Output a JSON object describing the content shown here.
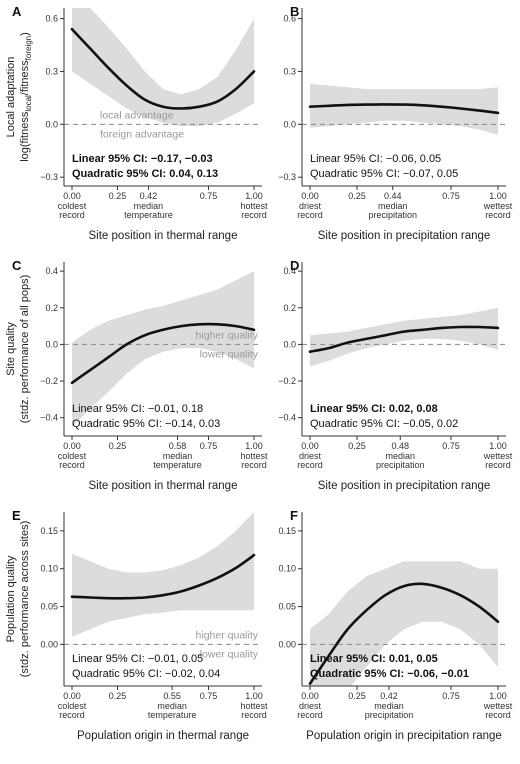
{
  "colors": {
    "band": "#dcdcdc",
    "line": "#111111",
    "axis": "#333333",
    "ref": "#888888",
    "annotation": "#9a9a9a"
  },
  "rows": [
    {
      "ylabel": [
        "Local adaptation",
        "log(fitness",
        "local",
        "/fitness",
        "foreign",
        ")"
      ],
      "ylim": [
        -0.35,
        0.66
      ],
      "yticks": [
        -0.3,
        0.0,
        0.3,
        0.6
      ],
      "ytick_labels": [
        "−0.3",
        "0.0",
        "0.3",
        "0.6"
      ],
      "annotations": {
        "above": "local advantage",
        "below": "foreign advantage"
      }
    },
    {
      "ylabel": [
        "Site quality",
        "(stdz. performance of all pops)"
      ],
      "ylim": [
        -0.5,
        0.45
      ],
      "yticks": [
        -0.4,
        -0.2,
        0.0,
        0.2,
        0.4
      ],
      "ytick_labels": [
        "−0.4",
        "−0.2",
        "0.0",
        "0.2",
        "0.4"
      ],
      "annotations": {
        "above": "higher quality",
        "below": "lower quality"
      }
    },
    {
      "ylabel": [
        "Population quality",
        "(stdz. performance across sites)"
      ],
      "ylim": [
        -0.055,
        0.175
      ],
      "yticks": [
        0.0,
        0.05,
        0.1,
        0.15
      ],
      "ytick_labels": [
        "0.00",
        "0.05",
        "0.10",
        "0.15"
      ],
      "annotations": {
        "above": "higher quality",
        "below": "lower quality"
      }
    }
  ],
  "chart_data": [
    {
      "panel": "A",
      "row": 0,
      "type": "line",
      "xlabel": "Site position in thermal range",
      "xticks": [
        0,
        0.25,
        0.42,
        0.75,
        1.0
      ],
      "xtick_labels": [
        "0.00",
        "0.25",
        "0.42",
        "0.75",
        "1.00"
      ],
      "xtick_sublabels": [
        [
          "coldest",
          "record"
        ],
        [],
        [
          "median",
          "temperature"
        ],
        [],
        [
          "hottest",
          "record"
        ]
      ],
      "x": [
        0,
        0.1,
        0.2,
        0.3,
        0.4,
        0.5,
        0.6,
        0.7,
        0.8,
        0.9,
        1.0
      ],
      "y": [
        0.54,
        0.43,
        0.32,
        0.22,
        0.14,
        0.1,
        0.09,
        0.1,
        0.13,
        0.2,
        0.3
      ],
      "lower": [
        0.3,
        0.23,
        0.16,
        0.09,
        0.04,
        0.01,
        -0.01,
        -0.01,
        0.01,
        0.06,
        0.12
      ],
      "upper": [
        0.66,
        0.66,
        0.55,
        0.43,
        0.3,
        0.2,
        0.17,
        0.2,
        0.27,
        0.42,
        0.6
      ],
      "ci": [
        {
          "text": "Linear 95% CI: −0.17, −0.03",
          "bold": true
        },
        {
          "text": "Quadratic 95% CI: 0.04, 0.13",
          "bold": true
        }
      ]
    },
    {
      "panel": "B",
      "row": 0,
      "type": "line",
      "xlabel": "Site position in precipitation range",
      "xticks": [
        0,
        0.25,
        0.44,
        0.75,
        1.0
      ],
      "xtick_labels": [
        "0.00",
        "0.25",
        "0.44",
        "0.75",
        "1.00"
      ],
      "xtick_sublabels": [
        [
          "driest",
          "record"
        ],
        [],
        [
          "median",
          "precipitation"
        ],
        [],
        [
          "wettest",
          "record"
        ]
      ],
      "x": [
        0,
        0.1,
        0.2,
        0.3,
        0.4,
        0.5,
        0.6,
        0.7,
        0.8,
        0.9,
        1.0
      ],
      "y": [
        0.1,
        0.105,
        0.11,
        0.112,
        0.113,
        0.112,
        0.108,
        0.1,
        0.09,
        0.078,
        0.065
      ],
      "lower": [
        -0.02,
        -0.01,
        0.0,
        0.01,
        0.02,
        0.02,
        0.01,
        0.0,
        -0.01,
        -0.03,
        -0.06
      ],
      "upper": [
        0.23,
        0.22,
        0.21,
        0.2,
        0.2,
        0.2,
        0.2,
        0.2,
        0.2,
        0.2,
        0.21
      ],
      "ci": [
        {
          "text": "Linear 95% CI: −0.06, 0.05",
          "bold": false
        },
        {
          "text": "Quadratic 95% CI: −0.07, 0.05",
          "bold": false
        }
      ]
    },
    {
      "panel": "C",
      "row": 1,
      "type": "line",
      "xlabel": "Site position in thermal range",
      "xticks": [
        0,
        0.25,
        0.58,
        0.75,
        1.0
      ],
      "xtick_labels": [
        "0.00",
        "0.25",
        "0.58",
        "0.75",
        "1.00"
      ],
      "xtick_sublabels": [
        [
          "coldest",
          "record"
        ],
        [],
        [
          "median",
          "temperature"
        ],
        [],
        [
          "hottest",
          "record"
        ]
      ],
      "x": [
        0,
        0.1,
        0.2,
        0.3,
        0.4,
        0.5,
        0.6,
        0.7,
        0.8,
        0.9,
        1.0
      ],
      "y": [
        -0.21,
        -0.14,
        -0.07,
        0.0,
        0.05,
        0.08,
        0.1,
        0.11,
        0.11,
        0.1,
        0.08
      ],
      "lower": [
        -0.45,
        -0.35,
        -0.26,
        -0.16,
        -0.08,
        -0.04,
        -0.02,
        -0.02,
        -0.04,
        -0.08,
        -0.13
      ],
      "upper": [
        0.01,
        0.08,
        0.13,
        0.16,
        0.19,
        0.21,
        0.24,
        0.27,
        0.3,
        0.35,
        0.4
      ],
      "ci": [
        {
          "text": "Linear 95% CI: −0.01, 0.18",
          "bold": false
        },
        {
          "text": "Quadratic 95% CI: −0.14, 0.03",
          "bold": false
        }
      ]
    },
    {
      "panel": "D",
      "row": 1,
      "type": "line",
      "xlabel": "Site position in precipitation range",
      "xticks": [
        0,
        0.25,
        0.48,
        0.75,
        1.0
      ],
      "xtick_labels": [
        "0.00",
        "0.25",
        "0.48",
        "0.75",
        "1.00"
      ],
      "xtick_sublabels": [
        [
          "driest",
          "record"
        ],
        [],
        [
          "median",
          "precipitation"
        ],
        [],
        [
          "wettest",
          "record"
        ]
      ],
      "x": [
        0,
        0.1,
        0.2,
        0.3,
        0.4,
        0.5,
        0.6,
        0.7,
        0.8,
        0.9,
        1.0
      ],
      "y": [
        -0.04,
        -0.02,
        0.01,
        0.03,
        0.05,
        0.07,
        0.08,
        0.09,
        0.095,
        0.095,
        0.09
      ],
      "lower": [
        -0.12,
        -0.09,
        -0.05,
        -0.02,
        0.0,
        0.02,
        0.03,
        0.03,
        0.02,
        0.0,
        -0.03
      ],
      "upper": [
        0.05,
        0.06,
        0.07,
        0.09,
        0.11,
        0.13,
        0.14,
        0.15,
        0.16,
        0.18,
        0.2
      ],
      "ci": [
        {
          "text": "Linear 95% CI: 0.02, 0.08",
          "bold": true
        },
        {
          "text": "Quadratic 95% CI: −0.05, 0.02",
          "bold": false
        }
      ]
    },
    {
      "panel": "E",
      "row": 2,
      "type": "line",
      "xlabel": "Population origin in thermal range",
      "xticks": [
        0,
        0.25,
        0.55,
        0.75,
        1.0
      ],
      "xtick_labels": [
        "0.00",
        "0.25",
        "0.55",
        "0.75",
        "1.00"
      ],
      "xtick_sublabels": [
        [
          "coldest",
          "record"
        ],
        [],
        [
          "median",
          "temperature"
        ],
        [],
        [
          "hottest",
          "record"
        ]
      ],
      "x": [
        0,
        0.1,
        0.2,
        0.3,
        0.4,
        0.5,
        0.6,
        0.7,
        0.8,
        0.9,
        1.0
      ],
      "y": [
        0.063,
        0.062,
        0.061,
        0.061,
        0.062,
        0.065,
        0.07,
        0.078,
        0.088,
        0.101,
        0.118
      ],
      "lower": [
        0.01,
        0.02,
        0.03,
        0.035,
        0.04,
        0.042,
        0.045,
        0.045,
        0.045,
        0.045,
        0.045
      ],
      "upper": [
        0.12,
        0.11,
        0.1,
        0.095,
        0.095,
        0.098,
        0.105,
        0.115,
        0.13,
        0.15,
        0.175
      ],
      "ci": [
        {
          "text": "Linear 95% CI: −0.01, 0.05",
          "bold": false
        },
        {
          "text": "Quadratic 95% CI: −0.02, 0.04",
          "bold": false
        }
      ]
    },
    {
      "panel": "F",
      "row": 2,
      "type": "line",
      "xlabel": "Population origin in precipitation range",
      "xticks": [
        0,
        0.25,
        0.42,
        0.75,
        1.0
      ],
      "xtick_labels": [
        "0.00",
        "0.25",
        "0.42",
        "0.75",
        "1.00"
      ],
      "xtick_sublabels": [
        [
          "driest",
          "record"
        ],
        [],
        [
          "median",
          "precipitation"
        ],
        [],
        [
          "wettest",
          "record"
        ]
      ],
      "x": [
        0,
        0.1,
        0.2,
        0.3,
        0.4,
        0.5,
        0.6,
        0.7,
        0.8,
        0.9,
        1.0
      ],
      "y": [
        -0.052,
        -0.015,
        0.02,
        0.045,
        0.065,
        0.077,
        0.08,
        0.075,
        0.065,
        0.05,
        0.03
      ],
      "lower": [
        -0.12,
        -0.09,
        -0.06,
        -0.03,
        0.0,
        0.02,
        0.03,
        0.03,
        0.02,
        0.0,
        -0.03
      ],
      "upper": [
        0.02,
        0.04,
        0.07,
        0.09,
        0.1,
        0.11,
        0.11,
        0.11,
        0.11,
        0.1,
        0.1
      ],
      "ci": [
        {
          "text": "Linear 95% CI: 0.01, 0.05",
          "bold": true
        },
        {
          "text": "Quadratic 95% CI: −0.06, −0.01",
          "bold": true
        }
      ]
    }
  ]
}
